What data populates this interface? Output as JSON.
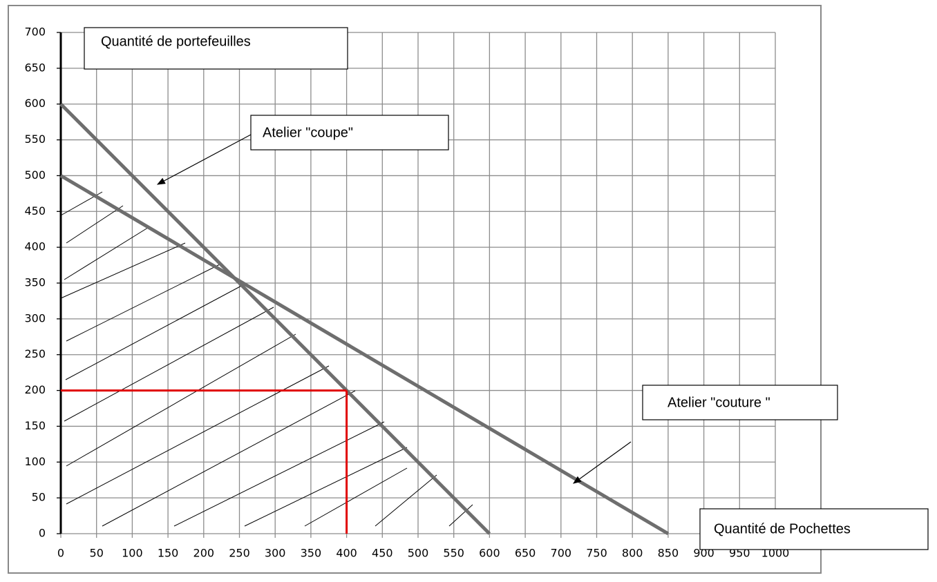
{
  "chart_data": {
    "type": "line",
    "x_label": "Quantité de Pochettes",
    "y_label": "Quantité de  portefeuilles",
    "xlim": [
      0,
      1000
    ],
    "ylim": [
      0,
      700
    ],
    "xticks": [
      0,
      50,
      100,
      150,
      200,
      250,
      300,
      350,
      400,
      450,
      500,
      550,
      600,
      650,
      700,
      750,
      800,
      850,
      900,
      950,
      1000
    ],
    "yticks": [
      0,
      50,
      100,
      150,
      200,
      250,
      300,
      350,
      400,
      450,
      500,
      550,
      600,
      650,
      700
    ],
    "grid": true,
    "series": [
      {
        "name": "Atelier \"coupe\"",
        "color": "#6e6e6e",
        "x": [
          0,
          600
        ],
        "values": [
          600,
          0
        ]
      },
      {
        "name": "Atelier \"couture \"",
        "color": "#6e6e6e",
        "x": [
          0,
          850
        ],
        "values": [
          500,
          0
        ]
      }
    ],
    "optimum": {
      "x": 400,
      "y": 200,
      "color": "#e00000"
    }
  }
}
